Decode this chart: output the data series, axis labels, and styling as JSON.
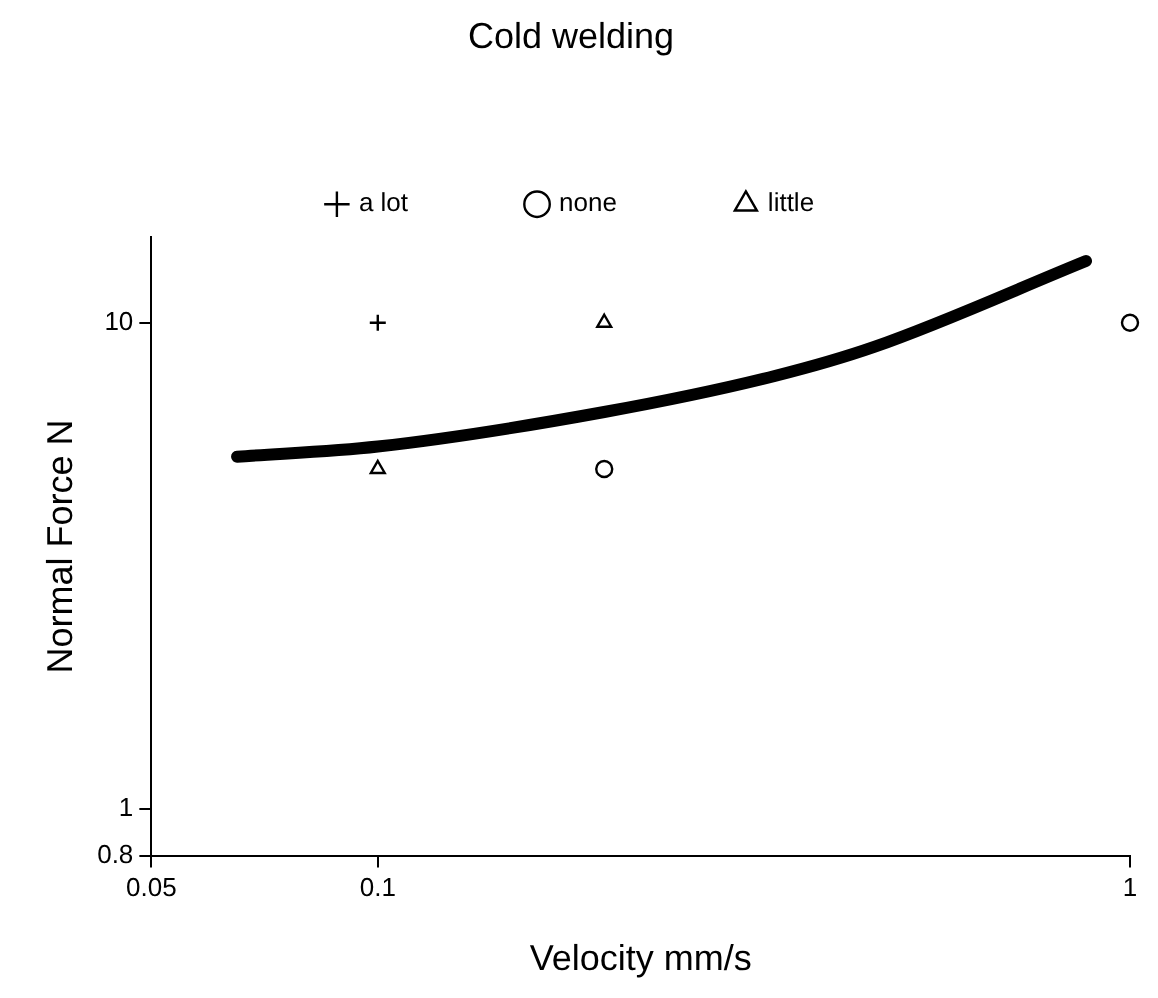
{
  "chart_data": {
    "type": "scatter",
    "title": "Cold welding",
    "xlabel": "Velocity mm/s",
    "ylabel": "Normal Force N",
    "log": "xy",
    "xlim": [
      0.05,
      1
    ],
    "xticks": [
      0.05,
      0.1,
      1
    ],
    "ylim": [
      0.8,
      15
    ],
    "yticks": [
      0.8,
      1,
      10
    ],
    "grid": false,
    "legend": "top",
    "series": [
      {
        "name": "a lot",
        "marker": "cross",
        "color": "#000000",
        "x": [
          0.1
        ],
        "values": [
          10
        ]
      },
      {
        "name": "none",
        "marker": "circle",
        "color": "#000000",
        "x": [
          0.2,
          1
        ],
        "values": [
          5,
          10
        ]
      },
      {
        "name": "little",
        "marker": "triangle",
        "color": "#000000",
        "x": [
          0.1,
          0.2
        ],
        "values": [
          5,
          10
        ]
      },
      {
        "type": "line",
        "marker": "none",
        "line_style": "solid",
        "color": "#000000",
        "x": [
          0.065,
          0.1,
          0.2,
          0.337,
          0.458,
          0.874
        ],
        "values": [
          5.3,
          5.56,
          6.55,
          7.77,
          8.93,
          13.4
        ]
      }
    ]
  }
}
